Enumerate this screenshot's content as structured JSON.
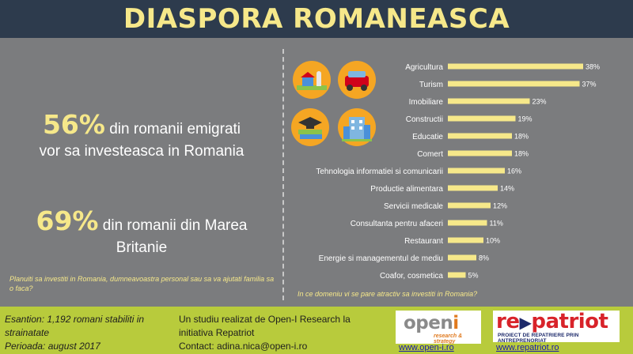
{
  "header": {
    "title": "DIASPORA ROMANEASCA"
  },
  "stats": [
    {
      "value": "56%",
      "text_1": "din romanii emigrati",
      "text_2": "vor sa investeasca in Romania"
    },
    {
      "value": "69%",
      "text_1": "din romanii din Marea",
      "text_2": "Britanie"
    }
  ],
  "left_question": "Planuiti sa investiti in Romania, dumneavoastra personal sau sa va ajutati familia sa o faca?",
  "right_question": "In ce domeniu vi se pare atractiv sa investiti in Romania?",
  "icons": [
    "farm-icon",
    "car-icon",
    "education-icon",
    "building-icon"
  ],
  "colors": {
    "header_bg": "#2d3b4d",
    "title": "#f6e88a",
    "panel_bg": "#7b7c7e",
    "bar": "#f6e88a",
    "footer_bg": "#b8cb3c"
  },
  "chart_data": {
    "type": "bar",
    "orientation": "horizontal",
    "categories": [
      "Agricultura",
      "Turism",
      "Imobiliare",
      "Constructii",
      "Educatie",
      "Comert",
      "Tehnologia informatiei si comunicarii",
      "Productie alimentara",
      "Servicii medicale",
      "Consultanta pentru afaceri",
      "Restaurant",
      "Energie si managementul de mediu",
      "Coafor, cosmetica"
    ],
    "values": [
      38,
      37,
      23,
      19,
      18,
      18,
      16,
      14,
      12,
      11,
      10,
      8,
      5
    ],
    "value_labels": [
      "38%",
      "37%",
      "23%",
      "19%",
      "18%",
      "18%",
      "16%",
      "14%",
      "12%",
      "11%",
      "10%",
      "8%",
      "5%"
    ],
    "xlim": [
      0,
      40
    ],
    "grid": false,
    "legend": "none"
  },
  "footer": {
    "sample": "Esantion: 1,192 romani stabiliti in strainatate",
    "period": "Perioada: august 2017",
    "study": "Un studiu realizat de Open-I Research la initiativa Repatriot",
    "contact": "Contact: adina.nica@open-i.ro",
    "logo_openi": "open",
    "logo_openi_i": "i",
    "logo_openi_tag": "research & strategy",
    "logo_repatriot_1": "re",
    "logo_repatriot_2": "patriot",
    "logo_repatriot_tag": "PROIECT DE REPATRIERE PRIN ANTREPRENORIAT",
    "url_openi": "www.open-i.ro",
    "url_repatriot": "www.repatriot.ro"
  }
}
